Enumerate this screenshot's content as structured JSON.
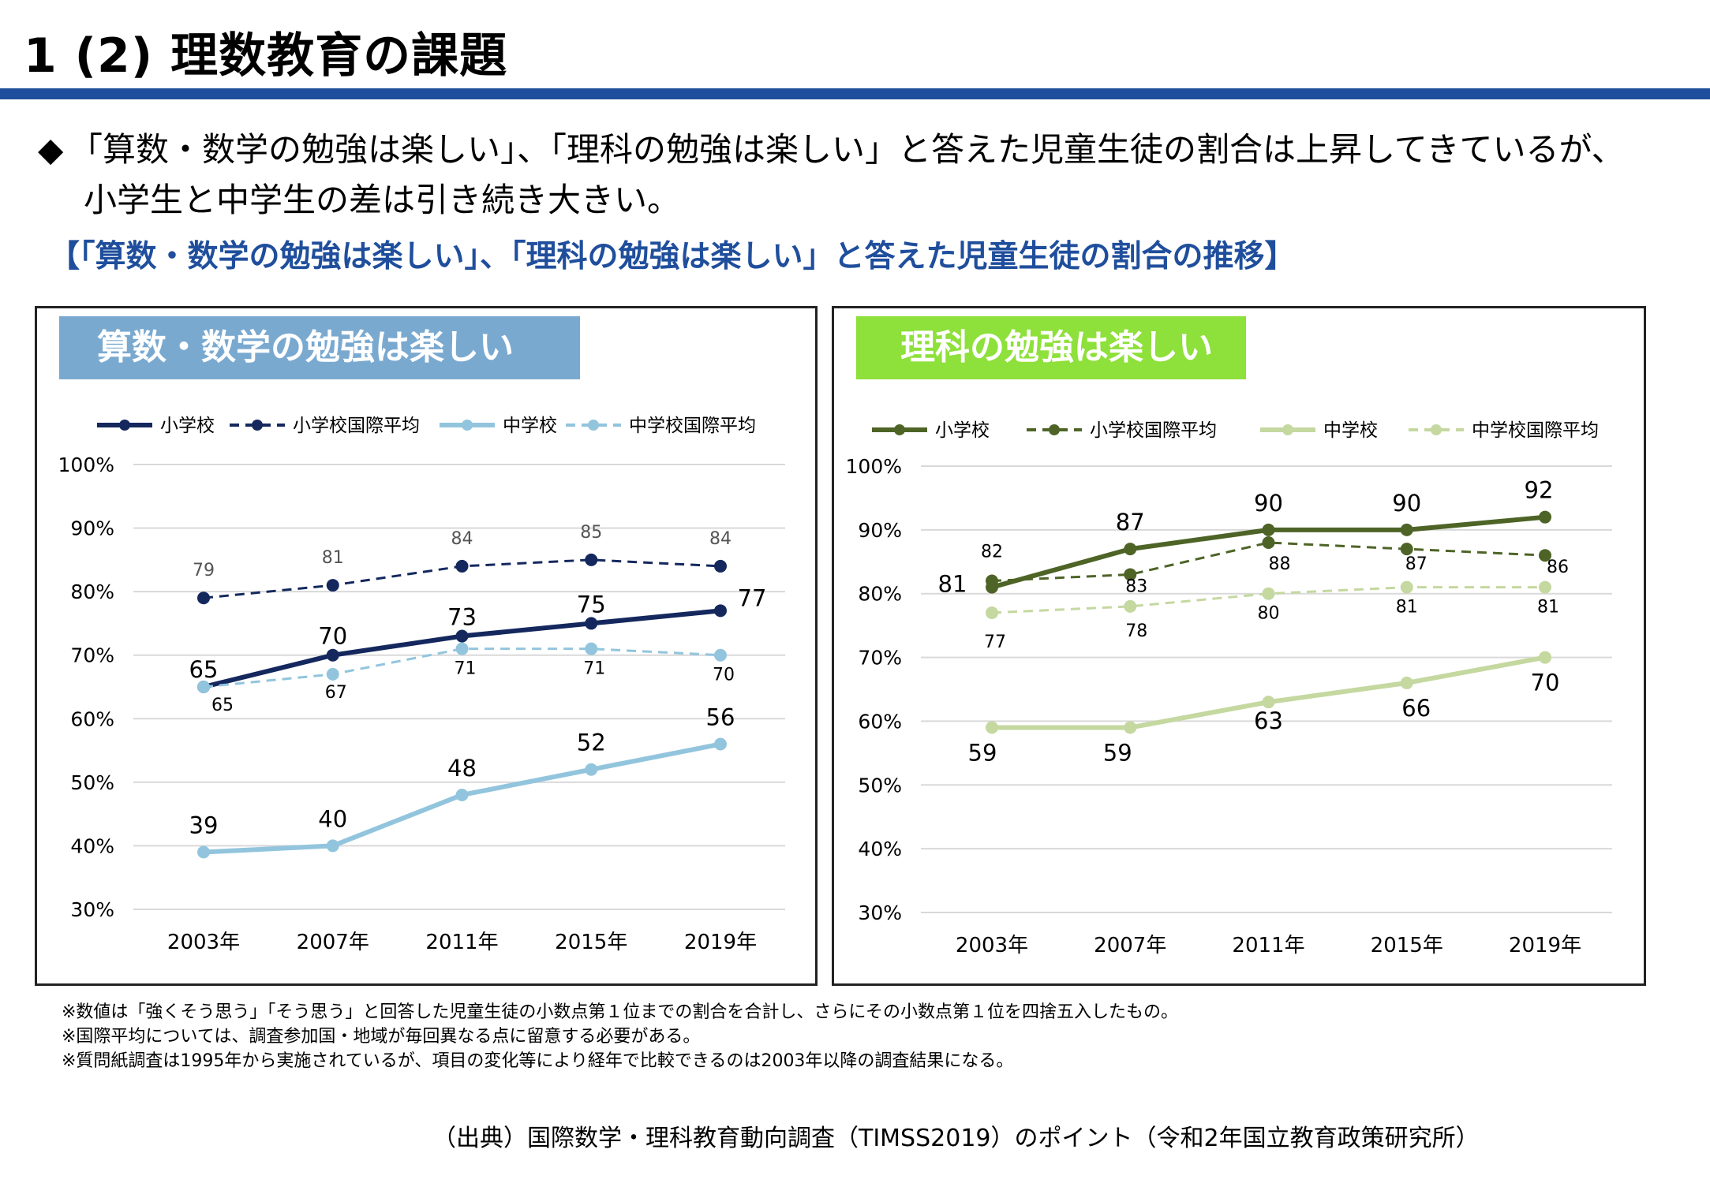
{
  "header": {
    "title": "1 (2) 理数教育の課題",
    "lead_bullet": "◆",
    "lead_line1": "「算数・数学の勉強は楽しい」、「理科の勉強は楽しい」と答えた児童生徒の割合は上昇してきているが、",
    "lead_line2": "小学生と中学生の差は引き続き大きい。",
    "subheading": "【「算数・数学の勉強は楽しい」、「理科の勉強は楽しい」と答えた児童生徒の割合の推移】"
  },
  "footnotes": [
    "※数値は「強くそう思う」「そう思う」と回答した児童生徒の小数点第１位までの割合を合計し、さらにその小数点第１位を四捨五入したもの。",
    "※国際平均については、調査参加国・地域が毎回異なる点に留意する必要がある。",
    "※質問紙調査は1995年から実施されているが、項目の変化等により経年で比較できるのは2003年以降の調査結果になる。"
  ],
  "source": "（出典）国際数学・理科教育動向調査（TIMSS2019）のポイント（令和2年国立教育政策研究所）",
  "chart_data": [
    {
      "type": "line",
      "title": "算数・数学の勉強は楽しい",
      "categories": [
        "2003年",
        "2007年",
        "2011年",
        "2015年",
        "2019年"
      ],
      "y_ticks": [
        "30%",
        "40%",
        "50%",
        "60%",
        "70%",
        "80%",
        "90%",
        "100%"
      ],
      "ylim": [
        30,
        100
      ],
      "grid": true,
      "legend": "top",
      "series": [
        {
          "name": "小学校",
          "values": [
            65,
            70,
            73,
            75,
            77
          ],
          "color": "#14285e",
          "dashed": false
        },
        {
          "name": "小学校国際平均",
          "values": [
            79,
            81,
            84,
            85,
            84
          ],
          "color": "#14285e",
          "dashed": true
        },
        {
          "name": "中学校",
          "values": [
            39,
            40,
            48,
            52,
            56
          ],
          "color": "#92c5dd",
          "dashed": false
        },
        {
          "name": "中学校国際平均",
          "values": [
            65,
            67,
            71,
            71,
            70
          ],
          "color": "#92c5dd",
          "dashed": true
        }
      ]
    },
    {
      "type": "line",
      "title": "理科の勉強は楽しい",
      "categories": [
        "2003年",
        "2007年",
        "2011年",
        "2015年",
        "2019年"
      ],
      "y_ticks": [
        "30%",
        "40%",
        "50%",
        "60%",
        "70%",
        "80%",
        "90%",
        "100%"
      ],
      "ylim": [
        30,
        100
      ],
      "grid": true,
      "legend": "top",
      "series": [
        {
          "name": "小学校",
          "values": [
            81,
            87,
            90,
            90,
            92
          ],
          "color": "#4e6427",
          "dashed": false
        },
        {
          "name": "小学校国際平均",
          "values": [
            82,
            83,
            88,
            87,
            86
          ],
          "color": "#4e6427",
          "dashed": true
        },
        {
          "name": "中学校",
          "values": [
            59,
            59,
            63,
            66,
            70
          ],
          "color": "#c4d8a0",
          "dashed": false
        },
        {
          "name": "中学校国際平均",
          "values": [
            77,
            78,
            80,
            81,
            81
          ],
          "color": "#c4d8a0",
          "dashed": true
        }
      ]
    }
  ]
}
